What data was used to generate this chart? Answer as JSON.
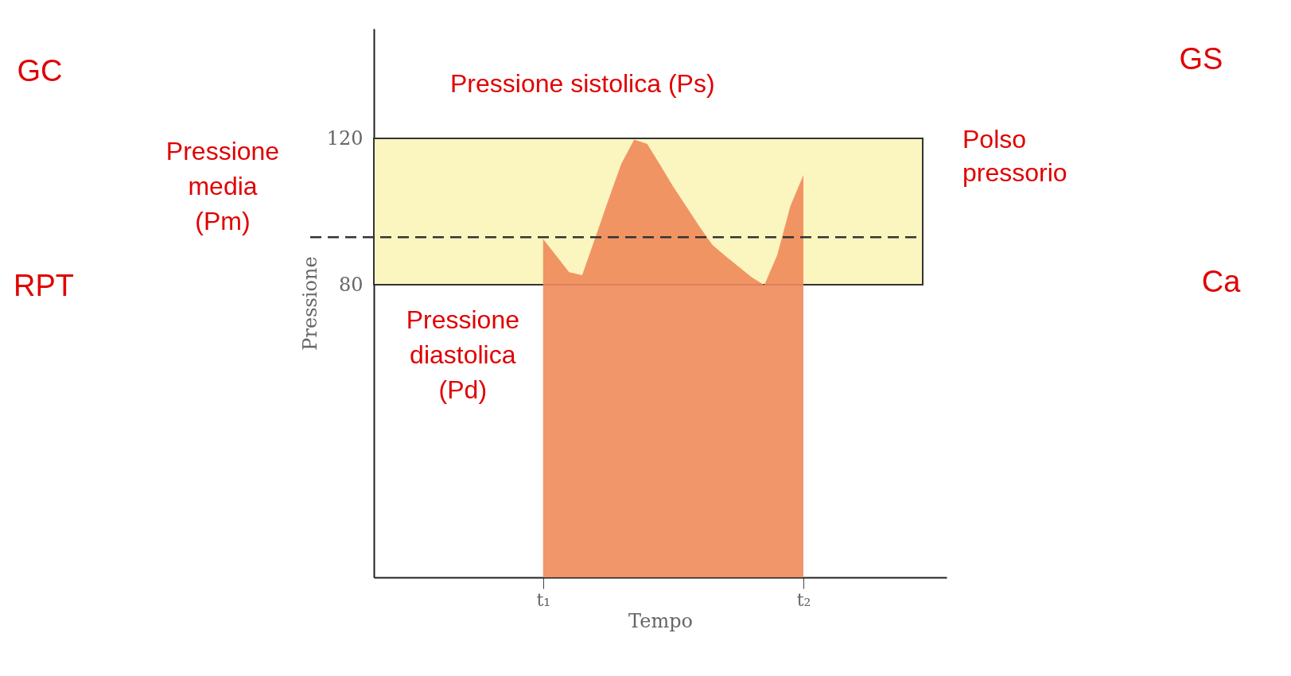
{
  "chart_data": {
    "type": "area",
    "xlabel": "Tempo",
    "ylabel": "Pressione",
    "categories": [
      null,
      null,
      null,
      null,
      null,
      null,
      null,
      null,
      null,
      null,
      null,
      null,
      null,
      "t₁",
      null,
      null,
      null,
      null,
      null,
      null,
      null,
      null,
      null,
      null,
      null,
      null,
      null,
      null,
      null,
      null,
      null,
      null,
      null,
      "t₂",
      null,
      null,
      null,
      null,
      null,
      null,
      null,
      null,
      null,
      null,
      null
    ],
    "series": [
      {
        "color": "#f08a5a",
        "values": [
          null,
          null,
          null,
          null,
          null,
          null,
          null,
          null,
          null,
          null,
          null,
          null,
          null,
          92.5,
          88,
          83.4,
          82.6,
          92.7,
          103,
          113,
          119.7,
          118.5,
          112.7,
          106.8,
          101.4,
          96,
          90.9,
          87.9,
          85,
          82.1,
          79.9,
          88.2,
          101.5,
          110,
          null,
          null,
          null,
          null,
          null,
          null,
          null,
          null,
          null,
          null,
          null
        ]
      }
    ],
    "ylim": [
      0,
      150
    ],
    "yticks": [
      80,
      120
    ],
    "bands": [
      {
        "axis": "y",
        "from": 80,
        "to": 120,
        "label": "Polso pressorio",
        "color": "#fbf5c0"
      }
    ],
    "ref_lines": [
      {
        "axis": "y",
        "value": 93,
        "label": "Pressione media (Pm)",
        "line_style": "dashed",
        "color": "#333333"
      }
    ],
    "annotations": [
      {
        "text": "Pressione sistolica (Ps)",
        "y": 120
      },
      {
        "text": "Pressione diastolica (Pd)",
        "y": 80
      },
      "GC",
      "RPT",
      "GS",
      "Ca"
    ],
    "grid": false
  }
}
